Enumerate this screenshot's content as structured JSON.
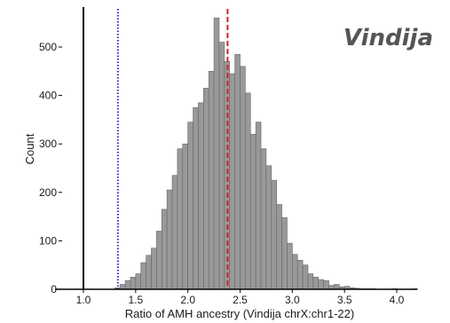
{
  "chart_data": {
    "type": "bar",
    "title": "Vindija",
    "xlabel": "Ratio of AMH ancestry (Vindija chrX:chr1-22)",
    "ylabel": "Count",
    "xlim": [
      0.75,
      4.35
    ],
    "ylim": [
      0,
      580
    ],
    "x_ticks": [
      "1.0",
      "1.5",
      "2.0",
      "2.5",
      "3.0",
      "3.5",
      "4.0"
    ],
    "y_ticks": [
      "0",
      "100",
      "200",
      "300",
      "400",
      "500"
    ],
    "x_tick_values": [
      1.0,
      1.5,
      2.0,
      2.5,
      3.0,
      3.5,
      4.0
    ],
    "y_tick_values": [
      0,
      100,
      200,
      300,
      400,
      500
    ],
    "bin_width": 0.05,
    "bins": {
      "x_start": [
        1.3,
        1.35,
        1.4,
        1.45,
        1.5,
        1.55,
        1.6,
        1.65,
        1.7,
        1.75,
        1.8,
        1.85,
        1.9,
        1.95,
        2.0,
        2.05,
        2.1,
        2.15,
        2.2,
        2.25,
        2.3,
        2.35,
        2.4,
        2.45,
        2.5,
        2.55,
        2.6,
        2.65,
        2.7,
        2.75,
        2.8,
        2.85,
        2.9,
        2.95,
        3.0,
        3.05,
        3.1,
        3.15,
        3.2,
        3.25,
        3.3,
        3.35,
        3.4,
        3.45,
        3.5,
        3.55,
        3.6,
        3.65,
        3.7,
        3.75,
        3.8,
        3.85,
        3.9,
        3.95,
        4.0,
        4.05,
        4.1,
        4.15
      ],
      "counts": [
        3,
        10,
        18,
        25,
        32,
        55,
        70,
        85,
        120,
        165,
        205,
        235,
        290,
        300,
        345,
        375,
        385,
        415,
        450,
        560,
        510,
        470,
        445,
        485,
        460,
        405,
        320,
        345,
        290,
        255,
        225,
        175,
        148,
        95,
        72,
        60,
        50,
        32,
        25,
        20,
        18,
        8,
        10,
        5,
        6,
        3,
        2,
        1,
        1,
        1,
        0,
        0,
        0,
        1,
        0,
        0,
        0,
        1
      ]
    },
    "bar_color": "#999999",
    "bar_edge_color": "#666666",
    "reference_lines": [
      {
        "x": 1.33,
        "color": "#2b2bc8",
        "style": "dotted"
      },
      {
        "x": 2.38,
        "color": "#e01e1e",
        "style": "dashed"
      }
    ]
  }
}
